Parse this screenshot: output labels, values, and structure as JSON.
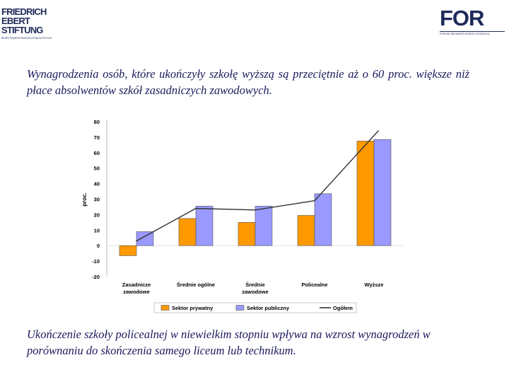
{
  "logos": {
    "fes": {
      "lines": [
        "FRIEDRICH",
        "EBERT",
        "STIFTUNG"
      ],
      "tagline": "BIURO PRZEDSTAWICIELSTWA W POLSCE"
    },
    "for": {
      "word": "FOR",
      "subtitle": "FORUM OBYWATELSKIEGO ROZWOJU"
    }
  },
  "headline": "Wynagrodzenia osób, które ukończyły szkołę wyższą są przeciętnie aż o 60 proc. większe niż płace absolwentów szkół zasadniczych zawodowych.",
  "footer": "Ukończenie szkoły policealnej w niewielkim stopniu wpływa na wzrost wynagrodzeń w porównaniu do skończenia samego liceum lub technikum.",
  "colors": {
    "private": "#ff9900",
    "public": "#9999ff",
    "overall": "#333333",
    "text": "#1a1a5c"
  },
  "chart_data": {
    "type": "bar",
    "title": "",
    "xlabel": "",
    "ylabel": "proc.",
    "ylim": [
      -20,
      80
    ],
    "yticks": [
      -20,
      -10,
      0,
      10,
      20,
      30,
      40,
      50,
      60,
      70,
      80
    ],
    "categories": [
      {
        "label": [
          "Zasadnicze",
          "zawodowe"
        ]
      },
      {
        "label": [
          "Średnie ogólne"
        ]
      },
      {
        "label": [
          "Średnie",
          "zawodowe"
        ]
      },
      {
        "label": [
          "Policealne"
        ]
      },
      {
        "label": [
          "Wyższe"
        ]
      }
    ],
    "series": [
      {
        "name": "Sektor prywatny",
        "type": "bar",
        "color": "#ff9900",
        "values": [
          -6.5,
          17.5,
          15,
          19.5,
          67.5
        ]
      },
      {
        "name": "Sektor publiczny",
        "type": "bar",
        "color": "#9999ff",
        "values": [
          9,
          25.5,
          25.5,
          33.5,
          68.5
        ]
      },
      {
        "name": "Ogółem",
        "type": "line",
        "color": "#333333",
        "values": [
          3,
          24,
          23,
          29,
          74
        ]
      }
    ],
    "legend": "bottom"
  }
}
